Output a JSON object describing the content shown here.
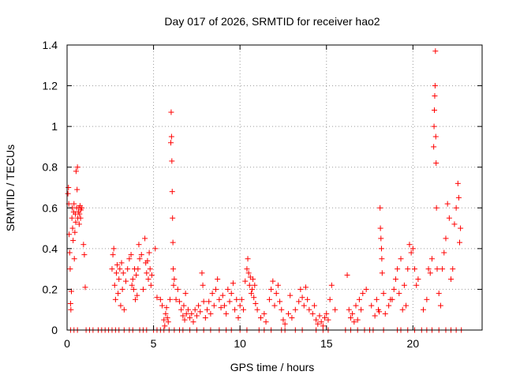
{
  "chart_data": {
    "type": "scatter",
    "title": "Day 017 of 2026, SRMTID for receiver hao2",
    "xlabel": "GPS time / hours",
    "ylabel": "SRMTID / TECUs",
    "xlim": [
      0,
      24
    ],
    "ylim": [
      0,
      1.4
    ],
    "xticks": [
      0,
      5,
      10,
      15,
      20
    ],
    "yticks": [
      0,
      0.2,
      0.4,
      0.6,
      0.8,
      1,
      1.2,
      1.4
    ],
    "xtick_labels": [
      "0",
      "5",
      "10",
      "15",
      "20"
    ],
    "ytick_labels": [
      "0",
      "0.2",
      "0.4",
      "0.6",
      "0.8",
      "1",
      "1.2",
      "1.4"
    ],
    "grid": true,
    "marker": "+",
    "color": "#ff0000",
    "series": [
      {
        "name": "SRMTID",
        "points": [
          [
            0.05,
            0.67
          ],
          [
            0.08,
            0.7
          ],
          [
            0.1,
            0.62
          ],
          [
            0.12,
            0.47
          ],
          [
            0.15,
            0.38
          ],
          [
            0.18,
            0.3
          ],
          [
            0.2,
            0.13
          ],
          [
            0.22,
            0.1
          ],
          [
            0.25,
            0.19
          ],
          [
            0.28,
            0.55
          ],
          [
            0.3,
            0.6
          ],
          [
            0.32,
            0.5
          ],
          [
            0.35,
            0.44
          ],
          [
            0.38,
            0.58
          ],
          [
            0.4,
            0.62
          ],
          [
            0.42,
            0.35
          ],
          [
            0.45,
            0.48
          ],
          [
            0.48,
            0.57
          ],
          [
            0.5,
            0.53
          ],
          [
            0.52,
            0.78
          ],
          [
            0.55,
            0.6
          ],
          [
            0.58,
            0.69
          ],
          [
            0.6,
            0.8
          ],
          [
            0.62,
            0.55
          ],
          [
            0.65,
            0.58
          ],
          [
            0.68,
            0.6
          ],
          [
            0.7,
            0.52
          ],
          [
            0.72,
            0.57
          ],
          [
            0.75,
            0.61
          ],
          [
            0.78,
            0.55
          ],
          [
            0.8,
            0.59
          ],
          [
            0.85,
            0.6
          ],
          [
            0.95,
            0.42
          ],
          [
            1.0,
            0.37
          ],
          [
            1.05,
            0.21
          ],
          [
            2.6,
            0.3
          ],
          [
            2.65,
            0.37
          ],
          [
            2.7,
            0.4
          ],
          [
            2.75,
            0.22
          ],
          [
            2.8,
            0.15
          ],
          [
            2.85,
            0.28
          ],
          [
            2.9,
            0.32
          ],
          [
            2.95,
            0.18
          ],
          [
            3.0,
            0.25
          ],
          [
            3.05,
            0.3
          ],
          [
            3.1,
            0.12
          ],
          [
            3.15,
            0.33
          ],
          [
            3.2,
            0.2
          ],
          [
            3.25,
            0.28
          ],
          [
            3.3,
            0.1
          ],
          [
            3.4,
            0.24
          ],
          [
            3.5,
            0.3
          ],
          [
            3.6,
            0.35
          ],
          [
            3.7,
            0.37
          ],
          [
            3.75,
            0.22
          ],
          [
            3.8,
            0.25
          ],
          [
            3.85,
            0.2
          ],
          [
            3.9,
            0.3
          ],
          [
            3.95,
            0.15
          ],
          [
            4.0,
            0.27
          ],
          [
            4.05,
            0.17
          ],
          [
            4.1,
            0.3
          ],
          [
            4.15,
            0.42
          ],
          [
            4.2,
            0.35
          ],
          [
            4.3,
            0.37
          ],
          [
            4.4,
            0.2
          ],
          [
            4.5,
            0.45
          ],
          [
            4.55,
            0.33
          ],
          [
            4.6,
            0.28
          ],
          [
            4.65,
            0.34
          ],
          [
            4.7,
            0.25
          ],
          [
            4.75,
            0.38
          ],
          [
            4.8,
            0.3
          ],
          [
            4.85,
            0.22
          ],
          [
            4.9,
            0.27
          ],
          [
            5.1,
            0.4
          ],
          [
            5.2,
            0.16
          ],
          [
            5.4,
            0.15
          ],
          [
            5.5,
            0.12
          ],
          [
            5.6,
            0.05
          ],
          [
            5.65,
            0.02
          ],
          [
            5.7,
            0.08
          ],
          [
            5.75,
            0.11
          ],
          [
            5.8,
            0.06
          ],
          [
            5.85,
            0.04
          ],
          [
            5.95,
            0.15
          ],
          [
            6.0,
            0.92
          ],
          [
            6.02,
            1.07
          ],
          [
            6.04,
            0.95
          ],
          [
            6.06,
            0.83
          ],
          [
            6.08,
            0.68
          ],
          [
            6.1,
            0.55
          ],
          [
            6.12,
            0.43
          ],
          [
            6.14,
            0.3
          ],
          [
            6.16,
            0.22
          ],
          [
            6.2,
            0.25
          ],
          [
            6.3,
            0.15
          ],
          [
            6.4,
            0.2
          ],
          [
            6.5,
            0.14
          ],
          [
            6.6,
            0.1
          ],
          [
            6.7,
            0.07
          ],
          [
            6.75,
            0.12
          ],
          [
            6.8,
            0.05
          ],
          [
            6.85,
            0.18
          ],
          [
            6.9,
            0.08
          ],
          [
            7.0,
            0.1
          ],
          [
            7.1,
            0.06
          ],
          [
            7.2,
            0.08
          ],
          [
            7.3,
            0.04
          ],
          [
            7.4,
            0.1
          ],
          [
            7.5,
            0.07
          ],
          [
            7.6,
            0.12
          ],
          [
            7.7,
            0.09
          ],
          [
            7.8,
            0.28
          ],
          [
            7.85,
            0.22
          ],
          [
            7.9,
            0.14
          ],
          [
            8.0,
            0.06
          ],
          [
            8.1,
            0.1
          ],
          [
            8.2,
            0.14
          ],
          [
            8.3,
            0.08
          ],
          [
            8.4,
            0.18
          ],
          [
            8.5,
            0.12
          ],
          [
            8.6,
            0.2
          ],
          [
            8.7,
            0.25
          ],
          [
            8.8,
            0.15
          ],
          [
            8.9,
            0.11
          ],
          [
            9.0,
            0.17
          ],
          [
            9.1,
            0.12
          ],
          [
            9.2,
            0.08
          ],
          [
            9.3,
            0.2
          ],
          [
            9.4,
            0.14
          ],
          [
            9.5,
            0.18
          ],
          [
            9.6,
            0.23
          ],
          [
            9.7,
            0.1
          ],
          [
            9.8,
            0.15
          ],
          [
            9.9,
            0.06
          ],
          [
            10.0,
            0.12
          ],
          [
            10.1,
            0.15
          ],
          [
            10.2,
            0.1
          ],
          [
            10.3,
            0.24
          ],
          [
            10.4,
            0.3
          ],
          [
            10.45,
            0.35
          ],
          [
            10.5,
            0.28
          ],
          [
            10.55,
            0.22
          ],
          [
            10.6,
            0.26
          ],
          [
            10.65,
            0.18
          ],
          [
            10.7,
            0.2
          ],
          [
            10.75,
            0.25
          ],
          [
            10.8,
            0.16
          ],
          [
            10.85,
            0.22
          ],
          [
            10.9,
            0.13
          ],
          [
            11.0,
            0.1
          ],
          [
            11.2,
            0.06
          ],
          [
            11.4,
            0.08
          ],
          [
            11.5,
            0.04
          ],
          [
            11.7,
            0.15
          ],
          [
            11.8,
            0.2
          ],
          [
            11.9,
            0.24
          ],
          [
            12.0,
            0.12
          ],
          [
            12.1,
            0.18
          ],
          [
            12.2,
            0.22
          ],
          [
            12.3,
            0.14
          ],
          [
            12.4,
            0.1
          ],
          [
            12.5,
            0.05
          ],
          [
            12.6,
            0.03
          ],
          [
            12.8,
            0.08
          ],
          [
            12.9,
            0.17
          ],
          [
            13.0,
            0.06
          ],
          [
            13.2,
            0.1
          ],
          [
            13.4,
            0.14
          ],
          [
            13.5,
            0.2
          ],
          [
            13.6,
            0.16
          ],
          [
            13.7,
            0.12
          ],
          [
            13.8,
            0.21
          ],
          [
            13.9,
            0.15
          ],
          [
            14.0,
            0.1
          ],
          [
            14.2,
            0.08
          ],
          [
            14.3,
            0.12
          ],
          [
            14.4,
            0.05
          ],
          [
            14.5,
            0.03
          ],
          [
            14.6,
            0.07
          ],
          [
            14.7,
            0.04
          ],
          [
            14.8,
            0.02
          ],
          [
            14.9,
            0.06
          ],
          [
            15.0,
            0.08
          ],
          [
            15.1,
            0.05
          ],
          [
            15.2,
            0.15
          ],
          [
            15.3,
            0.22
          ],
          [
            15.5,
            0.1
          ],
          [
            16.2,
            0.27
          ],
          [
            16.3,
            0.1
          ],
          [
            16.4,
            0.06
          ],
          [
            16.5,
            0.08
          ],
          [
            16.6,
            0.04
          ],
          [
            16.7,
            0.12
          ],
          [
            16.8,
            0.05
          ],
          [
            16.9,
            0.15
          ],
          [
            17.0,
            0.1
          ],
          [
            17.1,
            0.18
          ],
          [
            17.3,
            0.2
          ],
          [
            17.6,
            0.12
          ],
          [
            17.8,
            0.07
          ],
          [
            17.9,
            0.15
          ],
          [
            18.0,
            0.1
          ],
          [
            18.05,
            0.09
          ],
          [
            18.1,
            0.6
          ],
          [
            18.12,
            0.5
          ],
          [
            18.15,
            0.45
          ],
          [
            18.18,
            0.4
          ],
          [
            18.2,
            0.35
          ],
          [
            18.22,
            0.28
          ],
          [
            18.3,
            0.18
          ],
          [
            18.4,
            0.08
          ],
          [
            18.6,
            0.12
          ],
          [
            18.7,
            0.15
          ],
          [
            18.8,
            0.15
          ],
          [
            18.9,
            0.2
          ],
          [
            19.0,
            0.25
          ],
          [
            19.1,
            0.3
          ],
          [
            19.2,
            0.18
          ],
          [
            19.3,
            0.35
          ],
          [
            19.4,
            0.1
          ],
          [
            19.5,
            0.22
          ],
          [
            19.6,
            0.12
          ],
          [
            19.7,
            0.3
          ],
          [
            19.8,
            0.42
          ],
          [
            19.9,
            0.38
          ],
          [
            20.0,
            0.4
          ],
          [
            20.1,
            0.3
          ],
          [
            20.2,
            0.22
          ],
          [
            20.3,
            0.25
          ],
          [
            20.6,
            0.1
          ],
          [
            20.8,
            0.15
          ],
          [
            20.9,
            0.3
          ],
          [
            21.0,
            0.28
          ],
          [
            21.1,
            0.35
          ],
          [
            21.2,
            0.9
          ],
          [
            21.22,
            1.0
          ],
          [
            21.24,
            1.08
          ],
          [
            21.26,
            1.15
          ],
          [
            21.28,
            1.2
          ],
          [
            21.3,
            1.37
          ],
          [
            21.32,
            0.95
          ],
          [
            21.34,
            0.82
          ],
          [
            21.36,
            0.6
          ],
          [
            21.4,
            0.3
          ],
          [
            21.5,
            0.18
          ],
          [
            21.6,
            0.12
          ],
          [
            21.7,
            0.3
          ],
          [
            21.8,
            0.38
          ],
          [
            21.9,
            0.45
          ],
          [
            22.0,
            0.62
          ],
          [
            22.1,
            0.55
          ],
          [
            22.2,
            0.25
          ],
          [
            22.3,
            0.3
          ],
          [
            22.4,
            0.52
          ],
          [
            22.5,
            0.6
          ],
          [
            22.6,
            0.72
          ],
          [
            22.65,
            0.65
          ],
          [
            22.7,
            0.43
          ],
          [
            22.75,
            0.5
          ]
        ],
        "zero_hours": [
          0.2,
          0.4,
          0.6,
          1.1,
          1.3,
          1.5,
          1.8,
          2.0,
          2.2,
          2.4,
          2.6,
          2.8,
          3.0,
          3.3,
          3.6,
          3.8,
          4.2,
          4.4,
          4.6,
          5.0,
          5.2,
          5.4,
          5.6,
          5.9,
          6.2,
          6.5,
          6.7,
          7.1,
          7.5,
          7.9,
          8.3,
          8.8,
          9.2,
          9.5,
          10.0,
          10.4,
          11.1,
          11.4,
          11.8,
          12.4,
          12.6,
          13.2,
          13.6,
          14.4,
          14.8,
          15.1,
          16.1,
          16.4,
          16.8,
          17.2,
          17.5,
          17.7,
          18.3,
          19.1,
          19.3,
          19.7,
          20.1,
          20.5,
          20.8,
          21.1,
          21.5,
          21.9,
          22.2,
          22.5,
          22.8
        ]
      }
    ]
  }
}
